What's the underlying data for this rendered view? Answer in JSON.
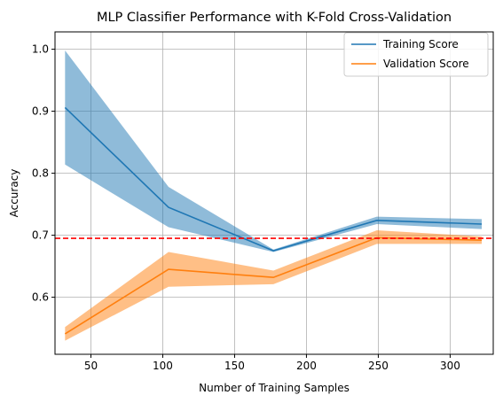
{
  "chart_data": {
    "type": "line",
    "title": "MLP Classifier Performance with K-Fold Cross-Validation",
    "xlabel": "Number of Training Samples",
    "ylabel": "Accuracy",
    "xlim": [
      25,
      330
    ],
    "ylim": [
      0.508,
      1.028
    ],
    "x_ticks": [
      50,
      100,
      150,
      200,
      250,
      300
    ],
    "y_ticks": [
      0.6,
      0.7,
      0.8,
      0.9,
      1.0
    ],
    "x_tick_labels": [
      "50",
      "100",
      "150",
      "200",
      "250",
      "300"
    ],
    "y_tick_labels": [
      "0.6",
      "0.7",
      "0.8",
      "0.9",
      "1.0"
    ],
    "grid": true,
    "legend_position": "top-right",
    "x": [
      32,
      104,
      177,
      249,
      322
    ],
    "series": [
      {
        "name": "Training Score",
        "color": "#1f77b4",
        "band_color": "#1f77b4",
        "values": [
          0.906,
          0.745,
          0.675,
          0.724,
          0.718
        ],
        "upper": [
          0.998,
          0.778,
          0.677,
          0.73,
          0.726
        ],
        "lower": [
          0.814,
          0.713,
          0.673,
          0.718,
          0.71
        ]
      },
      {
        "name": "Validation Score",
        "color": "#ff7f0e",
        "band_color": "#ff7f0e",
        "values": [
          0.541,
          0.645,
          0.632,
          0.696,
          0.692
        ],
        "upper": [
          0.552,
          0.673,
          0.643,
          0.708,
          0.698
        ],
        "lower": [
          0.53,
          0.617,
          0.621,
          0.686,
          0.686
        ]
      }
    ],
    "reference_line": {
      "y": 0.695,
      "color": "#ff0000",
      "style": "dashed"
    }
  }
}
